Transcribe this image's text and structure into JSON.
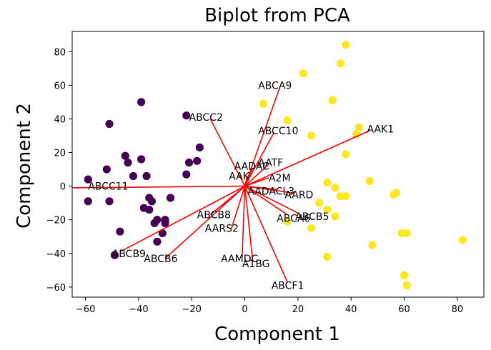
{
  "chart_data": {
    "type": "scatter",
    "title": "Biplot from PCA",
    "xlabel": "Component 1",
    "ylabel": "Component 2",
    "xlim": [
      -65,
      90
    ],
    "ylim": [
      -66,
      92
    ],
    "xticks": [
      -60,
      -40,
      -20,
      0,
      20,
      40,
      60,
      80
    ],
    "yticks": [
      -60,
      -40,
      -20,
      0,
      20,
      40,
      60,
      80
    ],
    "xtick_labels": [
      "−60",
      "−40",
      "−20",
      "0",
      "20",
      "40",
      "60",
      "80"
    ],
    "ytick_labels": [
      "−60",
      "−40",
      "−20",
      "0",
      "20",
      "40",
      "60",
      "80"
    ],
    "grid": false,
    "legend": "none",
    "colors": {
      "cluster_0": "#440154",
      "cluster_1": "#fde725",
      "loading": "#ff0000"
    },
    "series": [
      {
        "cluster": 0,
        "color": "#440154",
        "points": [
          [
            -59,
            4
          ],
          [
            -59,
            -9
          ],
          [
            -51,
            37
          ],
          [
            -52,
            10
          ],
          [
            -51,
            -9
          ],
          [
            -47,
            -27
          ],
          [
            -49,
            -41
          ],
          [
            -45,
            18
          ],
          [
            -44,
            14
          ],
          [
            -42,
            6
          ],
          [
            -39,
            16
          ],
          [
            -37,
            6
          ],
          [
            -39,
            50
          ],
          [
            -38,
            -13
          ],
          [
            -36,
            -14
          ],
          [
            -36,
            -7
          ],
          [
            -35,
            -9
          ],
          [
            -34,
            -22
          ],
          [
            -33,
            -33
          ],
          [
            -33,
            -20
          ],
          [
            -31,
            -28
          ],
          [
            -30,
            -20
          ],
          [
            -30,
            -22
          ],
          [
            -28,
            -7
          ],
          [
            -22,
            42
          ],
          [
            -22,
            7
          ],
          [
            -21,
            14
          ],
          [
            -18,
            15
          ],
          [
            -17,
            23
          ]
        ]
      },
      {
        "cluster": 1,
        "color": "#fde725",
        "points": [
          [
            38,
            84
          ],
          [
            36,
            73
          ],
          [
            22,
            67
          ],
          [
            7,
            49
          ],
          [
            33,
            51
          ],
          [
            16,
            39
          ],
          [
            25,
            30
          ],
          [
            42,
            31
          ],
          [
            43,
            35
          ],
          [
            38,
            19
          ],
          [
            31,
            2
          ],
          [
            34,
            -1
          ],
          [
            36,
            -6
          ],
          [
            38,
            -6
          ],
          [
            47,
            3
          ],
          [
            56,
            -5
          ],
          [
            57,
            -4
          ],
          [
            31,
            -14
          ],
          [
            34,
            -18
          ],
          [
            25,
            -25
          ],
          [
            16,
            -21
          ],
          [
            31,
            -42
          ],
          [
            48,
            -35
          ],
          [
            59,
            -28
          ],
          [
            61,
            -28
          ],
          [
            60,
            -53
          ],
          [
            61,
            -59
          ],
          [
            82,
            -32
          ],
          [
            28,
            -10
          ]
        ]
      }
    ],
    "loadings": [
      {
        "label": "ABCC11",
        "x": -65,
        "y": -1,
        "tx": -59,
        "ty": 0
      },
      {
        "label": "ABCB9",
        "x": -47,
        "y": -39,
        "tx": -50,
        "ty": -40
      },
      {
        "label": "ABCB6",
        "x": -30,
        "y": -43,
        "tx": -38,
        "ty": -43
      },
      {
        "label": "ABCB8",
        "x": -13,
        "y": -17,
        "tx": -18,
        "ty": -17
      },
      {
        "label": "AARS2",
        "x": -5,
        "y": -25,
        "tx": -15,
        "ty": -25
      },
      {
        "label": "ABCC2",
        "x": -13,
        "y": 40,
        "tx": -21,
        "ty": 41
      },
      {
        "label": "AAMDC",
        "x": -1,
        "y": -42,
        "tx": -9,
        "ty": -43
      },
      {
        "label": "A1BG",
        "x": 3,
        "y": -45,
        "tx": -1,
        "ty": -46
      },
      {
        "label": "ABCF1",
        "x": 16,
        "y": -57,
        "tx": 10,
        "ty": -59
      },
      {
        "label": "ABCA9",
        "x": 13,
        "y": 58,
        "tx": 5,
        "ty": 60
      },
      {
        "label": "ABCC10",
        "x": 11,
        "y": 32,
        "tx": 5,
        "ty": 33
      },
      {
        "label": "AAK1",
        "x": 47,
        "y": 33,
        "tx": 46,
        "ty": 34
      },
      {
        "label": "AATF",
        "x": 9,
        "y": 13,
        "tx": 5,
        "ty": 14
      },
      {
        "label": "AADAC",
        "x": 3,
        "y": 11,
        "tx": -4,
        "ty": 12
      },
      {
        "label": "AAK",
        "x": 1,
        "y": 6,
        "tx": -6,
        "ty": 6
      },
      {
        "label": "A2M",
        "x": 9,
        "y": 5,
        "tx": 9,
        "ty": 5
      },
      {
        "label": "AADACL3",
        "x": 12,
        "y": -2,
        "tx": 1,
        "ty": -3
      },
      {
        "label": "AARD",
        "x": 18,
        "y": -4,
        "tx": 15,
        "ty": -5
      },
      {
        "label": "ABCB5",
        "x": 20,
        "y": -16,
        "tx": 19,
        "ty": -18
      },
      {
        "label": "ABCA6",
        "x": 16,
        "y": -17,
        "tx": 12,
        "ty": -19
      }
    ]
  }
}
